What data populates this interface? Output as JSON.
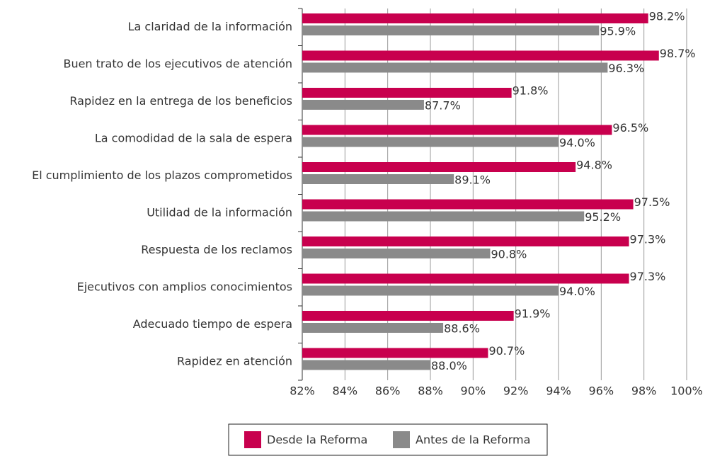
{
  "chart_data": {
    "type": "barh",
    "categories": [
      "La claridad de la información",
      "Buen trato de los ejecutivos de atención",
      "Rapidez en la entrega de los beneficios",
      "La comodidad de la sala de espera",
      "El cumplimiento de los plazos comprometidos",
      "Utilidad de la información",
      "Respuesta de los reclamos",
      "Ejecutivos con amplios conocimientos",
      "Adecuado tiempo de espera",
      "Rapidez en atención"
    ],
    "series": [
      {
        "name": "Desde la Reforma",
        "color": "#c8004e",
        "values": [
          98.2,
          98.7,
          91.8,
          96.5,
          94.8,
          97.5,
          97.3,
          97.3,
          91.9,
          90.7
        ],
        "value_labels": [
          "98.2%",
          "98.7%",
          "91.8%",
          "96.5%",
          "94.8%",
          "97.5%",
          "97.3%",
          "97.3%",
          "91.9%",
          "90.7%"
        ]
      },
      {
        "name": "Antes de la Reforma",
        "color": "#8a8a8a",
        "values": [
          95.9,
          96.3,
          87.7,
          94.0,
          89.1,
          95.2,
          90.8,
          94.0,
          88.6,
          88.0
        ],
        "value_labels": [
          "95.9%",
          "96.3%",
          "87.7%",
          "94.0%",
          "89.1%",
          "95.2%",
          "90.8%",
          "94.0%",
          "88.6%",
          "88.0%"
        ]
      }
    ],
    "xlim": [
      82,
      100
    ],
    "xticks": [
      {
        "value": 82,
        "label": "82%"
      },
      {
        "value": 84,
        "label": "84%"
      },
      {
        "value": 86,
        "label": "86%"
      },
      {
        "value": 88,
        "label": "88%"
      },
      {
        "value": 90,
        "label": "90%"
      },
      {
        "value": 92,
        "label": "92%"
      },
      {
        "value": 94,
        "label": "94%"
      },
      {
        "value": 96,
        "label": "96%"
      },
      {
        "value": 98,
        "label": "98%"
      },
      {
        "value": 100,
        "label": "100%"
      }
    ],
    "grid": true
  }
}
